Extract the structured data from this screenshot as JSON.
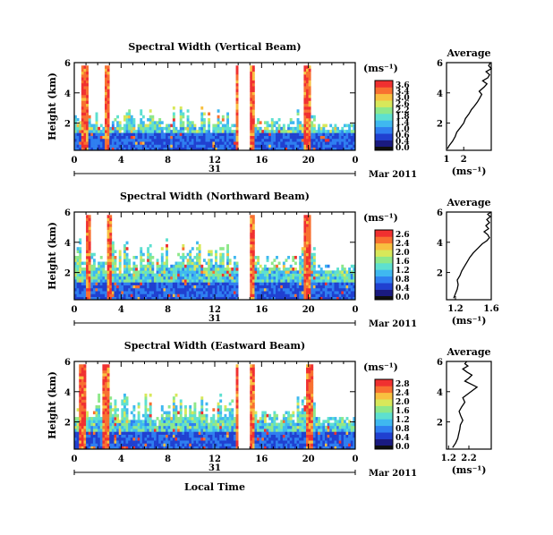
{
  "colors": {
    "colormap": [
      "#1a1a80",
      "#2040d0",
      "#2f7ff0",
      "#3fb8f0",
      "#5ee0d0",
      "#8ee88a",
      "#d8e85a",
      "#f8c040",
      "#f87030",
      "#f03030"
    ],
    "background": "#ffffff",
    "cb_bottom_dark": "#101010"
  },
  "common": {
    "x_ticks": [
      "0",
      "4",
      "8",
      "12",
      "16",
      "20",
      "0"
    ],
    "x_tick_values": [
      0,
      4,
      8,
      12,
      16,
      20,
      24
    ],
    "date_day": "31",
    "date_label": "Mar 2011",
    "ylabel": "Height (km)",
    "y_ticks": [
      "2",
      "4",
      "6"
    ],
    "y_tick_values": [
      2,
      4,
      6
    ],
    "xlabel": "Local Time",
    "unit_label": "(ms⁻¹)",
    "avg_title": "Average",
    "avg_unit": "(ms⁻¹)"
  },
  "chart_data": [
    {
      "type": "heatmap",
      "title": "Spectral Width (Vertical Beam)",
      "xlabel": "",
      "ylabel": "Height (km)",
      "xlim": [
        0,
        24
      ],
      "ylim": [
        0.2,
        6.0
      ],
      "colorbar_ticks": [
        "3.6",
        "3.4",
        "3.0",
        "2.6",
        "2.2",
        "1.8",
        "1.4",
        "1.0",
        "0.6",
        "0.4",
        "0.0"
      ],
      "colorbar_max": 3.6,
      "gap_start": 14.0,
      "gap_end": 15.1,
      "top_km": 3.2,
      "high_bands": [
        [
          0.6,
          1.1
        ],
        [
          2.7,
          3.0
        ],
        [
          13.9,
          15.4
        ],
        [
          19.7,
          20.2
        ]
      ],
      "average": {
        "type": "line",
        "title": "Average",
        "xlim": [
          1,
          3.6
        ],
        "x_ticks": [
          "1",
          "2"
        ],
        "x_tick_values": [
          1,
          2
        ],
        "y_ticks": [
          "2",
          "4",
          "6"
        ],
        "x": [
          1.05,
          1.15,
          1.35,
          1.5,
          1.6,
          1.8,
          2.0,
          2.1,
          2.3,
          2.45,
          2.6,
          2.8,
          2.95,
          3.05,
          2.9,
          3.2,
          3.35,
          3.1,
          3.4,
          3.5,
          3.3,
          3.6,
          3.45,
          3.55
        ],
        "y": [
          0.3,
          0.5,
          0.8,
          1.1,
          1.4,
          1.7,
          2.0,
          2.3,
          2.6,
          2.9,
          3.1,
          3.4,
          3.7,
          3.9,
          4.1,
          4.4,
          4.6,
          4.8,
          5.0,
          5.2,
          5.4,
          5.6,
          5.8,
          6.0
        ]
      }
    },
    {
      "type": "heatmap",
      "title": "Spectral Width (Northward Beam)",
      "xlabel": "",
      "ylabel": "Height (km)",
      "xlim": [
        0,
        24
      ],
      "ylim": [
        0.2,
        6.0
      ],
      "colorbar_ticks": [
        "2.6",
        "2.4",
        "2.0",
        "1.6",
        "1.2",
        "0.8",
        "0.4",
        "0.0"
      ],
      "colorbar_max": 2.6,
      "gap_start": 14.0,
      "gap_end": 15.1,
      "top_km": 4.3,
      "high_bands": [
        [
          0.9,
          1.3
        ],
        [
          2.9,
          3.2
        ],
        [
          14.0,
          15.3
        ],
        [
          19.6,
          20.1
        ]
      ],
      "average": {
        "type": "line",
        "title": "Average",
        "xlim": [
          1.1,
          1.6
        ],
        "x_ticks": [
          "1.2",
          "1.6"
        ],
        "x_tick_values": [
          1.2,
          1.6
        ],
        "y_ticks": [
          "2",
          "4",
          "6"
        ],
        "x": [
          1.18,
          1.2,
          1.22,
          1.23,
          1.22,
          1.25,
          1.27,
          1.3,
          1.33,
          1.36,
          1.4,
          1.45,
          1.5,
          1.55,
          1.58,
          1.56,
          1.52,
          1.57,
          1.54,
          1.58,
          1.55,
          1.59,
          1.56,
          1.6
        ],
        "y": [
          0.3,
          0.6,
          0.9,
          1.2,
          1.5,
          1.8,
          2.1,
          2.4,
          2.7,
          3.0,
          3.3,
          3.6,
          3.9,
          4.1,
          4.3,
          4.5,
          4.7,
          4.9,
          5.1,
          5.3,
          5.5,
          5.7,
          5.85,
          6.0
        ]
      }
    },
    {
      "type": "heatmap",
      "title": "Spectral Width (Eastward Beam)",
      "xlabel": "Local Time",
      "ylabel": "Height (km)",
      "xlim": [
        0,
        24
      ],
      "ylim": [
        0.2,
        6.0
      ],
      "colorbar_ticks": [
        "2.8",
        "2.4",
        "2.0",
        "1.6",
        "1.2",
        "0.8",
        "0.4",
        "0.0"
      ],
      "colorbar_max": 2.8,
      "gap_start": 14.0,
      "gap_end": 15.1,
      "top_km": 4.0,
      "high_bands": [
        [
          0.5,
          0.9
        ],
        [
          2.4,
          2.9
        ],
        [
          13.9,
          15.3
        ],
        [
          19.8,
          20.3
        ]
      ],
      "average": {
        "type": "line",
        "title": "Average",
        "xlim": [
          1.1,
          3.3
        ],
        "x_ticks": [
          "1.2",
          "2.2"
        ],
        "x_tick_values": [
          1.2,
          2.2
        ],
        "y_ticks": [
          "2",
          "4",
          "6"
        ],
        "x": [
          1.4,
          1.55,
          1.65,
          1.7,
          1.75,
          1.78,
          1.9,
          1.8,
          1.72,
          1.85,
          2.0,
          1.9,
          2.2,
          2.4,
          2.6,
          2.3,
          2.0,
          2.2,
          2.35,
          2.1,
          1.9,
          2.15,
          2.0,
          2.1
        ],
        "y": [
          0.3,
          0.6,
          0.9,
          1.2,
          1.5,
          1.8,
          2.1,
          2.4,
          2.7,
          3.0,
          3.3,
          3.6,
          3.9,
          4.1,
          4.3,
          4.5,
          4.7,
          4.9,
          5.1,
          5.3,
          5.5,
          5.7,
          5.85,
          6.0
        ]
      }
    }
  ]
}
